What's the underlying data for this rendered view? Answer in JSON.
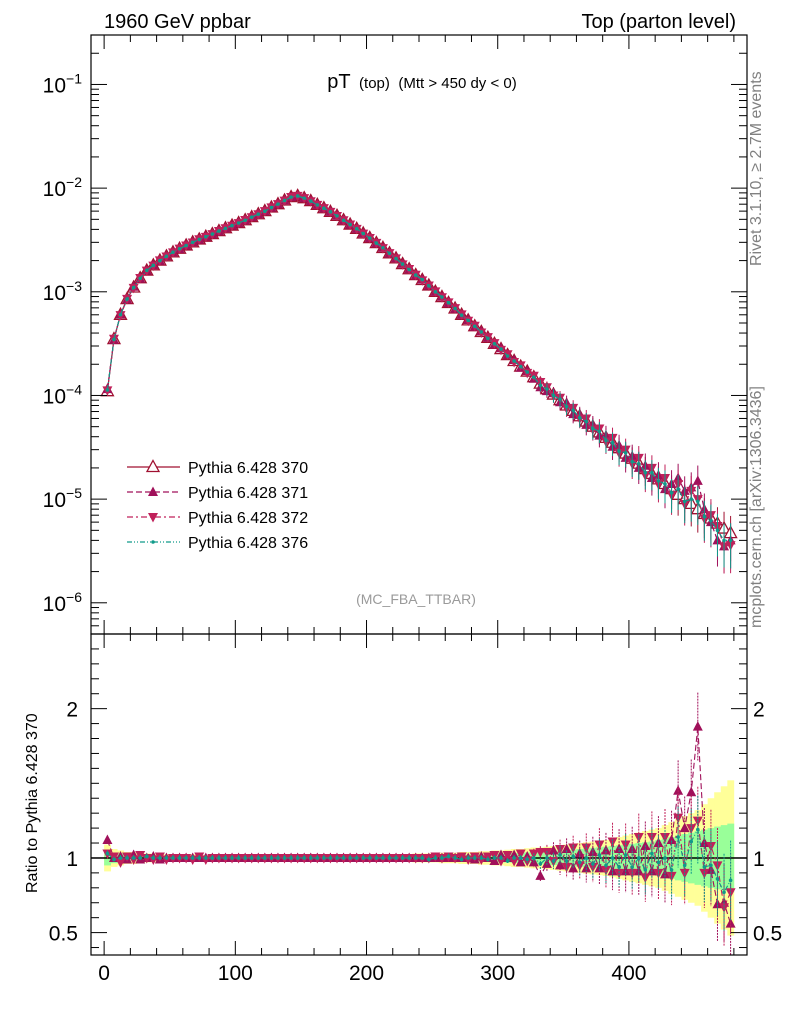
{
  "header": {
    "left": "1960 GeV ppbar",
    "right": "Top (parton level)"
  },
  "side_text": {
    "rivet": "Rivet 3.1.10, ≥ 2.7M events",
    "mcplots": "mcplots.cern.ch [arXiv:1306.3436]"
  },
  "plot_title": {
    "main": "pT",
    "sub1": "(top)",
    "sub2": "(Mtt > 450 dy < 0)"
  },
  "analysis_tag": "(MC_FBA_TTBAR)",
  "ratio_ylabel": "Ratio to Pythia 6.428 370",
  "colors": {
    "s370": "#a01030",
    "s371": "#a0105a",
    "s372": "#c0205a",
    "s376": "#109a8a",
    "band_yellow": "#ffff99",
    "band_green": "#99ff99"
  },
  "chart_data": [
    {
      "type": "line",
      "yscale": "log",
      "xlim": [
        -10,
        490
      ],
      "ylim": [
        5e-07,
        0.3
      ],
      "y_tick_labels": [
        "10^-6",
        "10^-5",
        "10^-4",
        "10^-3",
        "10^-2",
        "10^-1"
      ],
      "legend_position": "bottom-left",
      "x": [
        2.5,
        7.5,
        12.5,
        17.5,
        22.5,
        27.5,
        32.5,
        37.5,
        42.5,
        47.5,
        52.5,
        57.5,
        62.5,
        67.5,
        72.5,
        77.5,
        82.5,
        87.5,
        92.5,
        97.5,
        102.5,
        107.5,
        112.5,
        117.5,
        122.5,
        127.5,
        132.5,
        137.5,
        142.5,
        147.5,
        152.5,
        157.5,
        162.5,
        167.5,
        172.5,
        177.5,
        182.5,
        187.5,
        192.5,
        197.5,
        202.5,
        207.5,
        212.5,
        217.5,
        222.5,
        227.5,
        232.5,
        237.5,
        242.5,
        247.5,
        252.5,
        257.5,
        262.5,
        267.5,
        272.5,
        277.5,
        282.5,
        287.5,
        292.5,
        297.5,
        302.5,
        307.5,
        312.5,
        317.5,
        322.5,
        327.5,
        332.5,
        337.5,
        342.5,
        347.5,
        352.5,
        357.5,
        362.5,
        367.5,
        372.5,
        377.5,
        382.5,
        387.5,
        392.5,
        397.5,
        402.5,
        407.5,
        412.5,
        417.5,
        422.5,
        427.5,
        432.5,
        437.5,
        442.5,
        447.5,
        452.5,
        457.5,
        462.5,
        467.5,
        472.5,
        477.5
      ],
      "series": [
        {
          "name": "Pythia 6.428 370",
          "marker": "open-triangle-up",
          "line": "solid",
          "values": [
            0.00011,
            0.00035,
            0.0006,
            0.00085,
            0.0011,
            0.00135,
            0.0016,
            0.0018,
            0.002,
            0.0022,
            0.0024,
            0.0026,
            0.0028,
            0.003,
            0.0032,
            0.0034,
            0.0036,
            0.00385,
            0.0041,
            0.00435,
            0.0046,
            0.0049,
            0.00525,
            0.0056,
            0.006,
            0.0065,
            0.007,
            0.0076,
            0.0082,
            0.0084,
            0.008,
            0.0075,
            0.0069,
            0.0064,
            0.0059,
            0.0054,
            0.0049,
            0.00445,
            0.00405,
            0.00365,
            0.0033,
            0.00295,
            0.00265,
            0.00235,
            0.0021,
            0.00185,
            0.00165,
            0.00145,
            0.0013,
            0.00115,
            0.001,
            0.00089,
            0.00078,
            0.00069,
            0.0006,
            0.00053,
            0.000465,
            0.00041,
            0.00036,
            0.000315,
            0.00028,
            0.000245,
            0.000215,
            0.00019,
            0.00017,
            0.00015,
            0.00013,
            0.000115,
            0.000102,
            9e-05,
            8e-05,
            7.1e-05,
            6.3e-05,
            5.6e-05,
            5e-05,
            4.4e-05,
            3.9e-05,
            3.5e-05,
            3.1e-05,
            2.75e-05,
            2.45e-05,
            2.2e-05,
            1.95e-05,
            1.75e-05,
            1.55e-05,
            1.4e-05,
            1.25e-05,
            1.1e-05,
            1e-05,
            9e-06,
            8e-06,
            7.2e-06,
            6.5e-06,
            5.8e-06,
            5.2e-06,
            4.7e-06
          ]
        },
        {
          "name": "Pythia 6.428 371",
          "marker": "filled-triangle-up",
          "line": "dashed",
          "values": [
            0.000115,
            0.000345,
            0.000605,
            0.000845,
            0.00112,
            0.00134,
            0.0016,
            0.00181,
            0.00199,
            0.00221,
            0.0024,
            0.00259,
            0.0028,
            0.00301,
            0.00319,
            0.00341,
            0.0036,
            0.00384,
            0.0041,
            0.00436,
            0.0046,
            0.00488,
            0.00526,
            0.0056,
            0.006,
            0.00648,
            0.007,
            0.00762,
            0.0082,
            0.00838,
            0.008,
            0.00752,
            0.0069,
            0.00638,
            0.0059,
            0.00542,
            0.0049,
            0.00444,
            0.00405,
            0.00366,
            0.0033,
            0.00294,
            0.00266,
            0.00235,
            0.0021,
            0.00186,
            0.00165,
            0.00144,
            0.00131,
            0.00115,
            0.001,
            0.000895,
            0.00078,
            0.000685,
            0.0006,
            0.000535,
            0.00046,
            0.000415,
            0.00036,
            0.00031,
            0.000285,
            0.000245,
            0.00022,
            0.000185,
            0.000172,
            0.000145,
            0.00012,
            0.00011,
            0.000105,
            8.6e-05,
            8.5e-05,
            6.6e-05,
            6.5e-05,
            5.2e-05,
            5.2e-05,
            4.1e-05,
            4.1e-05,
            3.2e-05,
            3.3e-05,
            2.5e-05,
            2.6e-05,
            2e-05,
            2.1e-05,
            1.6e-05,
            1.7e-05,
            1.25e-05,
            1.4e-05,
            1.6e-05,
            1.2e-05,
            1.3e-05,
            1.5e-05,
            8e-06,
            6e-06,
            4e-06,
            3.5e-06,
            4e-06
          ]
        },
        {
          "name": "Pythia 6.428 372",
          "marker": "filled-triangle-down",
          "line": "dash-dot",
          "values": [
            0.000112,
            0.000352,
            0.000595,
            0.000855,
            0.00109,
            0.00136,
            0.0016,
            0.00179,
            0.00201,
            0.00219,
            0.0024,
            0.00261,
            0.0028,
            0.00299,
            0.00321,
            0.00339,
            0.0036,
            0.00386,
            0.0041,
            0.00434,
            0.0046,
            0.00492,
            0.00524,
            0.0056,
            0.006,
            0.00652,
            0.007,
            0.00758,
            0.0082,
            0.00842,
            0.008,
            0.00748,
            0.0069,
            0.00642,
            0.0059,
            0.00538,
            0.0049,
            0.00446,
            0.00405,
            0.00364,
            0.0033,
            0.00296,
            0.00264,
            0.00236,
            0.0021,
            0.00184,
            0.00166,
            0.00146,
            0.00129,
            0.00115,
            0.00101,
            0.000885,
            0.00079,
            0.000695,
            0.000605,
            0.000525,
            0.00047,
            0.000405,
            0.000365,
            0.00032,
            0.000275,
            0.00025,
            0.00021,
            0.000195,
            0.000165,
            0.000155,
            0.000135,
            0.00012,
            0.0001,
            9.5e-05,
            7.5e-05,
            7.6e-05,
            6e-05,
            6e-05,
            4.7e-05,
            4.8e-05,
            3.6e-05,
            3.9e-05,
            2.8e-05,
            3e-05,
            2.2e-05,
            2.5e-05,
            1.7e-05,
            2e-05,
            1.4e-05,
            1.6e-05,
            1.1e-05,
            1.4e-05,
            9e-06,
            1.2e-05,
            1e-05,
            6.5e-06,
            7e-06,
            5.5e-06,
            3.5e-06,
            3.6e-06
          ]
        },
        {
          "name": "Pythia 6.428 376",
          "marker": "small-dot",
          "line": "dash-dot-dot",
          "values": [
            0.000113,
            0.000348,
            0.000602,
            0.00085,
            0.0011,
            0.00135,
            0.00161,
            0.0018,
            0.002,
            0.0022,
            0.00241,
            0.0026,
            0.00279,
            0.003,
            0.0032,
            0.0034,
            0.00361,
            0.00385,
            0.00409,
            0.00435,
            0.00461,
            0.0049,
            0.00525,
            0.00561,
            0.00599,
            0.0065,
            0.00701,
            0.0076,
            0.00819,
            0.0084,
            0.00801,
            0.0075,
            0.00689,
            0.0064,
            0.00591,
            0.0054,
            0.00489,
            0.00445,
            0.00406,
            0.00365,
            0.00329,
            0.00295,
            0.00266,
            0.00235,
            0.00209,
            0.00185,
            0.00164,
            0.00145,
            0.00131,
            0.00114,
            0.001,
            0.00089,
            0.000785,
            0.00069,
            0.000595,
            0.00053,
            0.000465,
            0.00041,
            0.000355,
            0.000315,
            0.00028,
            0.00024,
            0.000215,
            0.00019,
            0.000168,
            0.00015,
            0.000125,
            0.000115,
            0.0001,
            9.2e-05,
            7.8e-05,
            7.2e-05,
            6.1e-05,
            5.6e-05,
            4.8e-05,
            4.5e-05,
            3.7e-05,
            3.5e-05,
            2.9e-05,
            2.8e-05,
            2.3e-05,
            2.2e-05,
            1.8e-05,
            1.8e-05,
            1.5e-05,
            1.4e-05,
            1.15e-05,
            1.25e-05,
            9.5e-06,
            1e-05,
            9.5e-06,
            6.8e-06,
            6.2e-06,
            5e-06,
            4e-06,
            4e-06
          ]
        }
      ]
    },
    {
      "type": "line",
      "role": "ratio",
      "xlim": [
        -10,
        490
      ],
      "ylim": [
        0.35,
        2.5
      ],
      "x_ticks": [
        0,
        100,
        200,
        300,
        400
      ],
      "y_ticks": [
        0.5,
        1,
        2
      ],
      "reference_line": 1,
      "band_yellow_halfwidth": [
        0.09,
        0.06,
        0.05,
        0.04,
        0.04,
        0.035,
        0.03,
        0.03,
        0.03,
        0.025,
        0.025,
        0.025,
        0.025,
        0.025,
        0.02,
        0.02,
        0.02,
        0.02,
        0.02,
        0.02,
        0.02,
        0.02,
        0.02,
        0.02,
        0.02,
        0.02,
        0.02,
        0.02,
        0.02,
        0.02,
        0.02,
        0.02,
        0.02,
        0.02,
        0.02,
        0.02,
        0.02,
        0.02,
        0.02,
        0.02,
        0.02,
        0.02,
        0.025,
        0.025,
        0.025,
        0.025,
        0.025,
        0.03,
        0.03,
        0.03,
        0.03,
        0.035,
        0.035,
        0.035,
        0.04,
        0.04,
        0.04,
        0.045,
        0.045,
        0.05,
        0.05,
        0.055,
        0.06,
        0.06,
        0.065,
        0.07,
        0.07,
        0.075,
        0.08,
        0.085,
        0.09,
        0.095,
        0.1,
        0.105,
        0.11,
        0.115,
        0.12,
        0.13,
        0.14,
        0.15,
        0.16,
        0.17,
        0.18,
        0.19,
        0.2,
        0.22,
        0.24,
        0.26,
        0.28,
        0.3,
        0.32,
        0.36,
        0.4,
        0.44,
        0.48,
        0.52
      ],
      "band_green_halfwidth": [
        0.05,
        0.035,
        0.03,
        0.025,
        0.02,
        0.02,
        0.018,
        0.017,
        0.016,
        0.015,
        0.014,
        0.013,
        0.013,
        0.012,
        0.012,
        0.012,
        0.012,
        0.012,
        0.012,
        0.012,
        0.012,
        0.012,
        0.012,
        0.012,
        0.012,
        0.012,
        0.012,
        0.012,
        0.012,
        0.012,
        0.012,
        0.012,
        0.012,
        0.012,
        0.012,
        0.012,
        0.012,
        0.012,
        0.012,
        0.012,
        0.012,
        0.012,
        0.013,
        0.013,
        0.014,
        0.014,
        0.015,
        0.015,
        0.016,
        0.016,
        0.017,
        0.018,
        0.019,
        0.02,
        0.021,
        0.022,
        0.023,
        0.024,
        0.025,
        0.027,
        0.029,
        0.031,
        0.033,
        0.035,
        0.037,
        0.04,
        0.042,
        0.045,
        0.048,
        0.05,
        0.053,
        0.056,
        0.06,
        0.064,
        0.068,
        0.072,
        0.076,
        0.08,
        0.085,
        0.09,
        0.095,
        0.1,
        0.105,
        0.11,
        0.12,
        0.13,
        0.14,
        0.15,
        0.16,
        0.17,
        0.18,
        0.19,
        0.2,
        0.21,
        0.22,
        0.23
      ],
      "series": [
        {
          "name": "Pythia 6.428 371",
          "values": [
            1.12,
            1.0,
            1.01,
            0.99,
            1.02,
            0.99,
            1.0,
            1.01,
            0.99,
            1.0,
            1.0,
            1.0,
            1.0,
            1.0,
            1.0,
            1.0,
            1.0,
            1.0,
            1.0,
            1.0,
            1.0,
            1.0,
            1.0,
            1.0,
            1.0,
            1.0,
            1.0,
            1.0,
            1.0,
            1.0,
            1.0,
            1.0,
            1.0,
            1.0,
            1.0,
            1.0,
            1.0,
            1.0,
            1.0,
            1.0,
            1.0,
            1.0,
            1.0,
            1.0,
            1.0,
            1.0,
            1.0,
            1.0,
            1.0,
            1.0,
            1.0,
            1.0,
            1.0,
            1.0,
            1.0,
            1.0,
            0.99,
            1.01,
            1.0,
            0.98,
            1.02,
            1.0,
            1.02,
            0.97,
            1.01,
            0.97,
            0.88,
            0.96,
            1.05,
            0.95,
            1.06,
            0.93,
            1.03,
            0.93,
            1.04,
            0.93,
            1.05,
            0.91,
            1.06,
            0.91,
            1.06,
            0.91,
            1.08,
            0.91,
            1.1,
            0.89,
            1.12,
            1.45,
            1.2,
            1.44,
            1.88,
            1.1,
            0.92,
            0.69,
            0.7,
            0.56
          ]
        },
        {
          "name": "Pythia 6.428 372",
          "values": [
            1.03,
            1.01,
            0.97,
            1.01,
            0.99,
            1.02,
            1.0,
            0.99,
            1.01,
            0.99,
            1.0,
            1.0,
            1.0,
            0.99,
            1.01,
            0.99,
            1.0,
            1.0,
            1.0,
            1.0,
            1.0,
            1.0,
            1.0,
            1.0,
            1.0,
            1.0,
            1.0,
            1.0,
            1.0,
            1.0,
            1.0,
            1.0,
            1.0,
            1.0,
            1.0,
            1.0,
            1.0,
            1.0,
            1.0,
            1.0,
            1.0,
            1.0,
            1.0,
            1.0,
            1.0,
            1.0,
            1.0,
            1.0,
            1.0,
            1.0,
            1.01,
            1.0,
            1.01,
            1.0,
            1.01,
            0.99,
            1.01,
            0.99,
            1.01,
            1.02,
            0.98,
            1.02,
            0.98,
            1.03,
            0.98,
            1.03,
            1.04,
            1.04,
            0.98,
            1.06,
            0.94,
            1.07,
            0.95,
            1.07,
            0.94,
            1.09,
            0.92,
            1.11,
            0.9,
            1.09,
            0.9,
            1.14,
            0.87,
            1.14,
            0.9,
            1.14,
            0.88,
            1.27,
            0.9,
            1.2,
            1.25,
            0.9,
            1.08,
            0.95,
            0.67,
            0.77
          ]
        },
        {
          "name": "Pythia 6.428 376",
          "values": [
            1.03,
            0.99,
            1.0,
            1.0,
            1.0,
            1.0,
            1.01,
            1.0,
            1.0,
            1.0,
            1.0,
            1.0,
            1.0,
            1.0,
            1.0,
            1.0,
            1.0,
            1.0,
            1.0,
            1.0,
            1.0,
            1.0,
            1.0,
            1.0,
            1.0,
            1.0,
            1.0,
            1.0,
            1.0,
            1.0,
            1.0,
            1.0,
            1.0,
            1.0,
            1.0,
            1.0,
            1.0,
            1.0,
            1.0,
            1.0,
            1.0,
            1.0,
            1.0,
            1.0,
            1.0,
            1.0,
            1.0,
            1.0,
            1.0,
            0.99,
            1.0,
            1.0,
            1.01,
            1.0,
            0.99,
            1.0,
            1.0,
            1.0,
            0.99,
            1.0,
            1.0,
            0.98,
            1.0,
            1.0,
            0.99,
            1.0,
            0.96,
            1.0,
            0.98,
            1.02,
            0.98,
            1.01,
            0.97,
            1.0,
            0.96,
            1.02,
            0.95,
            1.0,
            0.94,
            1.02,
            0.94,
            1.0,
            0.92,
            1.03,
            0.97,
            1.0,
            0.92,
            1.14,
            0.95,
            1.11,
            1.19,
            0.94,
            0.95,
            0.86,
            0.77,
            0.85
          ]
        }
      ]
    }
  ]
}
